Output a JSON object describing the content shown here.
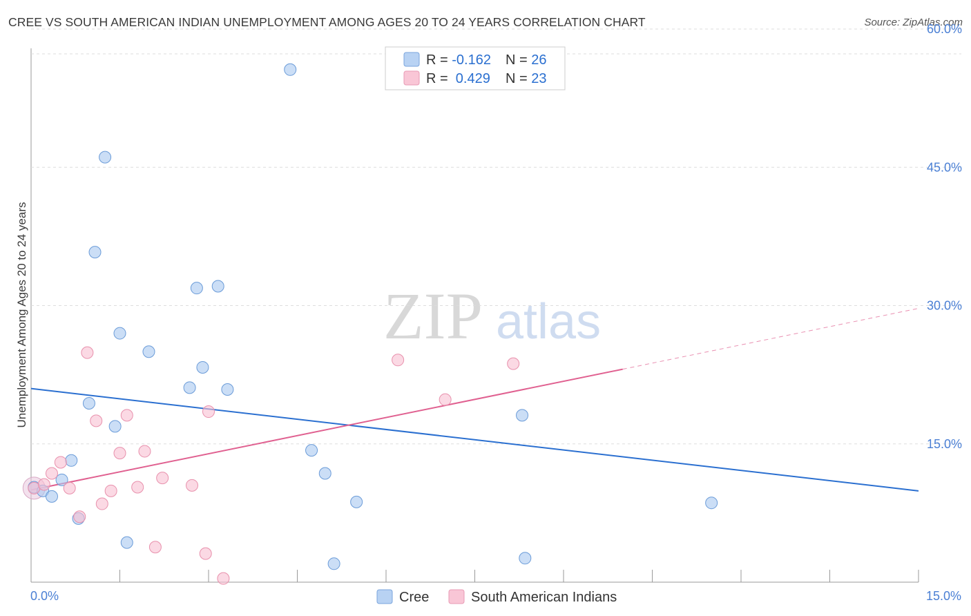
{
  "chart_data": {
    "type": "scatter",
    "title": "CREE VS SOUTH AMERICAN INDIAN UNEMPLOYMENT AMONG AGES 20 TO 24 YEARS CORRELATION CHART",
    "source": "Source: ZipAtlas.com",
    "watermark_zip": "ZIP",
    "watermark_atlas": "atlas",
    "xlabel": "",
    "ylabel": "Unemployment Among Ages 20 to 24 years",
    "xlim": [
      0,
      15
    ],
    "ylim": [
      0,
      63
    ],
    "x_tick_labels": [
      "0.0%",
      "15.0%"
    ],
    "y_ticks": [
      15,
      30,
      45,
      60
    ],
    "y_tick_labels": [
      "15.0%",
      "30.0%",
      "45.0%",
      "60.0%"
    ],
    "legend_top": [
      {
        "r_label": "R = ",
        "r_value": "-0.162",
        "n_label": "N = ",
        "n_value": "26"
      },
      {
        "r_label": "R = ",
        "r_value": " 0.429",
        "n_label": "N = ",
        "n_value": "23"
      }
    ],
    "series": [
      {
        "name": "Cree",
        "color": "#a8c8f0",
        "stroke": "#6a9bd8",
        "line_color": "#2a6fd0",
        "trend": {
          "x0": 0,
          "y0": 21.0,
          "x1": 15,
          "y1": 9.9
        },
        "points": [
          {
            "x": 0.05,
            "y": 10.3
          },
          {
            "x": 0.2,
            "y": 9.9
          },
          {
            "x": 0.35,
            "y": 9.3
          },
          {
            "x": 0.52,
            "y": 11.1
          },
          {
            "x": 0.68,
            "y": 13.2
          },
          {
            "x": 0.8,
            "y": 6.9
          },
          {
            "x": 0.98,
            "y": 19.4
          },
          {
            "x": 1.08,
            "y": 35.8
          },
          {
            "x": 1.25,
            "y": 46.1
          },
          {
            "x": 1.42,
            "y": 16.9
          },
          {
            "x": 1.5,
            "y": 27.0
          },
          {
            "x": 1.62,
            "y": 4.3
          },
          {
            "x": 1.99,
            "y": 25.0
          },
          {
            "x": 2.68,
            "y": 21.1
          },
          {
            "x": 2.8,
            "y": 31.9
          },
          {
            "x": 2.9,
            "y": 23.3
          },
          {
            "x": 3.16,
            "y": 32.1
          },
          {
            "x": 3.32,
            "y": 20.9
          },
          {
            "x": 4.38,
            "y": 55.6
          },
          {
            "x": 4.74,
            "y": 14.3
          },
          {
            "x": 4.97,
            "y": 11.8
          },
          {
            "x": 5.12,
            "y": 2.0
          },
          {
            "x": 5.5,
            "y": 8.7
          },
          {
            "x": 8.3,
            "y": 18.1
          },
          {
            "x": 8.35,
            "y": 2.6
          },
          {
            "x": 11.5,
            "y": 8.6
          }
        ]
      },
      {
        "name": "South American Indians",
        "color": "#f8c0d2",
        "stroke": "#e890ac",
        "line_color": "#e06090",
        "trend": {
          "x0": 0,
          "y0": 10.0,
          "x1": 10.0,
          "y1": 23.1
        },
        "trend_dashed": {
          "x0": 10.0,
          "y0": 23.1,
          "x1": 15,
          "y1": 29.7
        },
        "points": [
          {
            "x": 0.05,
            "y": 10.2
          },
          {
            "x": 0.22,
            "y": 10.6
          },
          {
            "x": 0.35,
            "y": 11.8
          },
          {
            "x": 0.5,
            "y": 13.0
          },
          {
            "x": 0.65,
            "y": 10.2
          },
          {
            "x": 0.82,
            "y": 7.1
          },
          {
            "x": 0.95,
            "y": 24.9
          },
          {
            "x": 1.1,
            "y": 17.5
          },
          {
            "x": 1.2,
            "y": 8.5
          },
          {
            "x": 1.35,
            "y": 9.9
          },
          {
            "x": 1.5,
            "y": 14.0
          },
          {
            "x": 1.62,
            "y": 18.1
          },
          {
            "x": 1.8,
            "y": 10.3
          },
          {
            "x": 1.92,
            "y": 14.2
          },
          {
            "x": 2.1,
            "y": 3.8
          },
          {
            "x": 2.22,
            "y": 11.3
          },
          {
            "x": 2.72,
            "y": 10.5
          },
          {
            "x": 2.95,
            "y": 3.1
          },
          {
            "x": 3.0,
            "y": 18.5
          },
          {
            "x": 3.25,
            "y": 0.4
          },
          {
            "x": 6.2,
            "y": 24.1
          },
          {
            "x": 7.0,
            "y": 19.8
          },
          {
            "x": 8.15,
            "y": 23.7
          }
        ]
      }
    ]
  }
}
